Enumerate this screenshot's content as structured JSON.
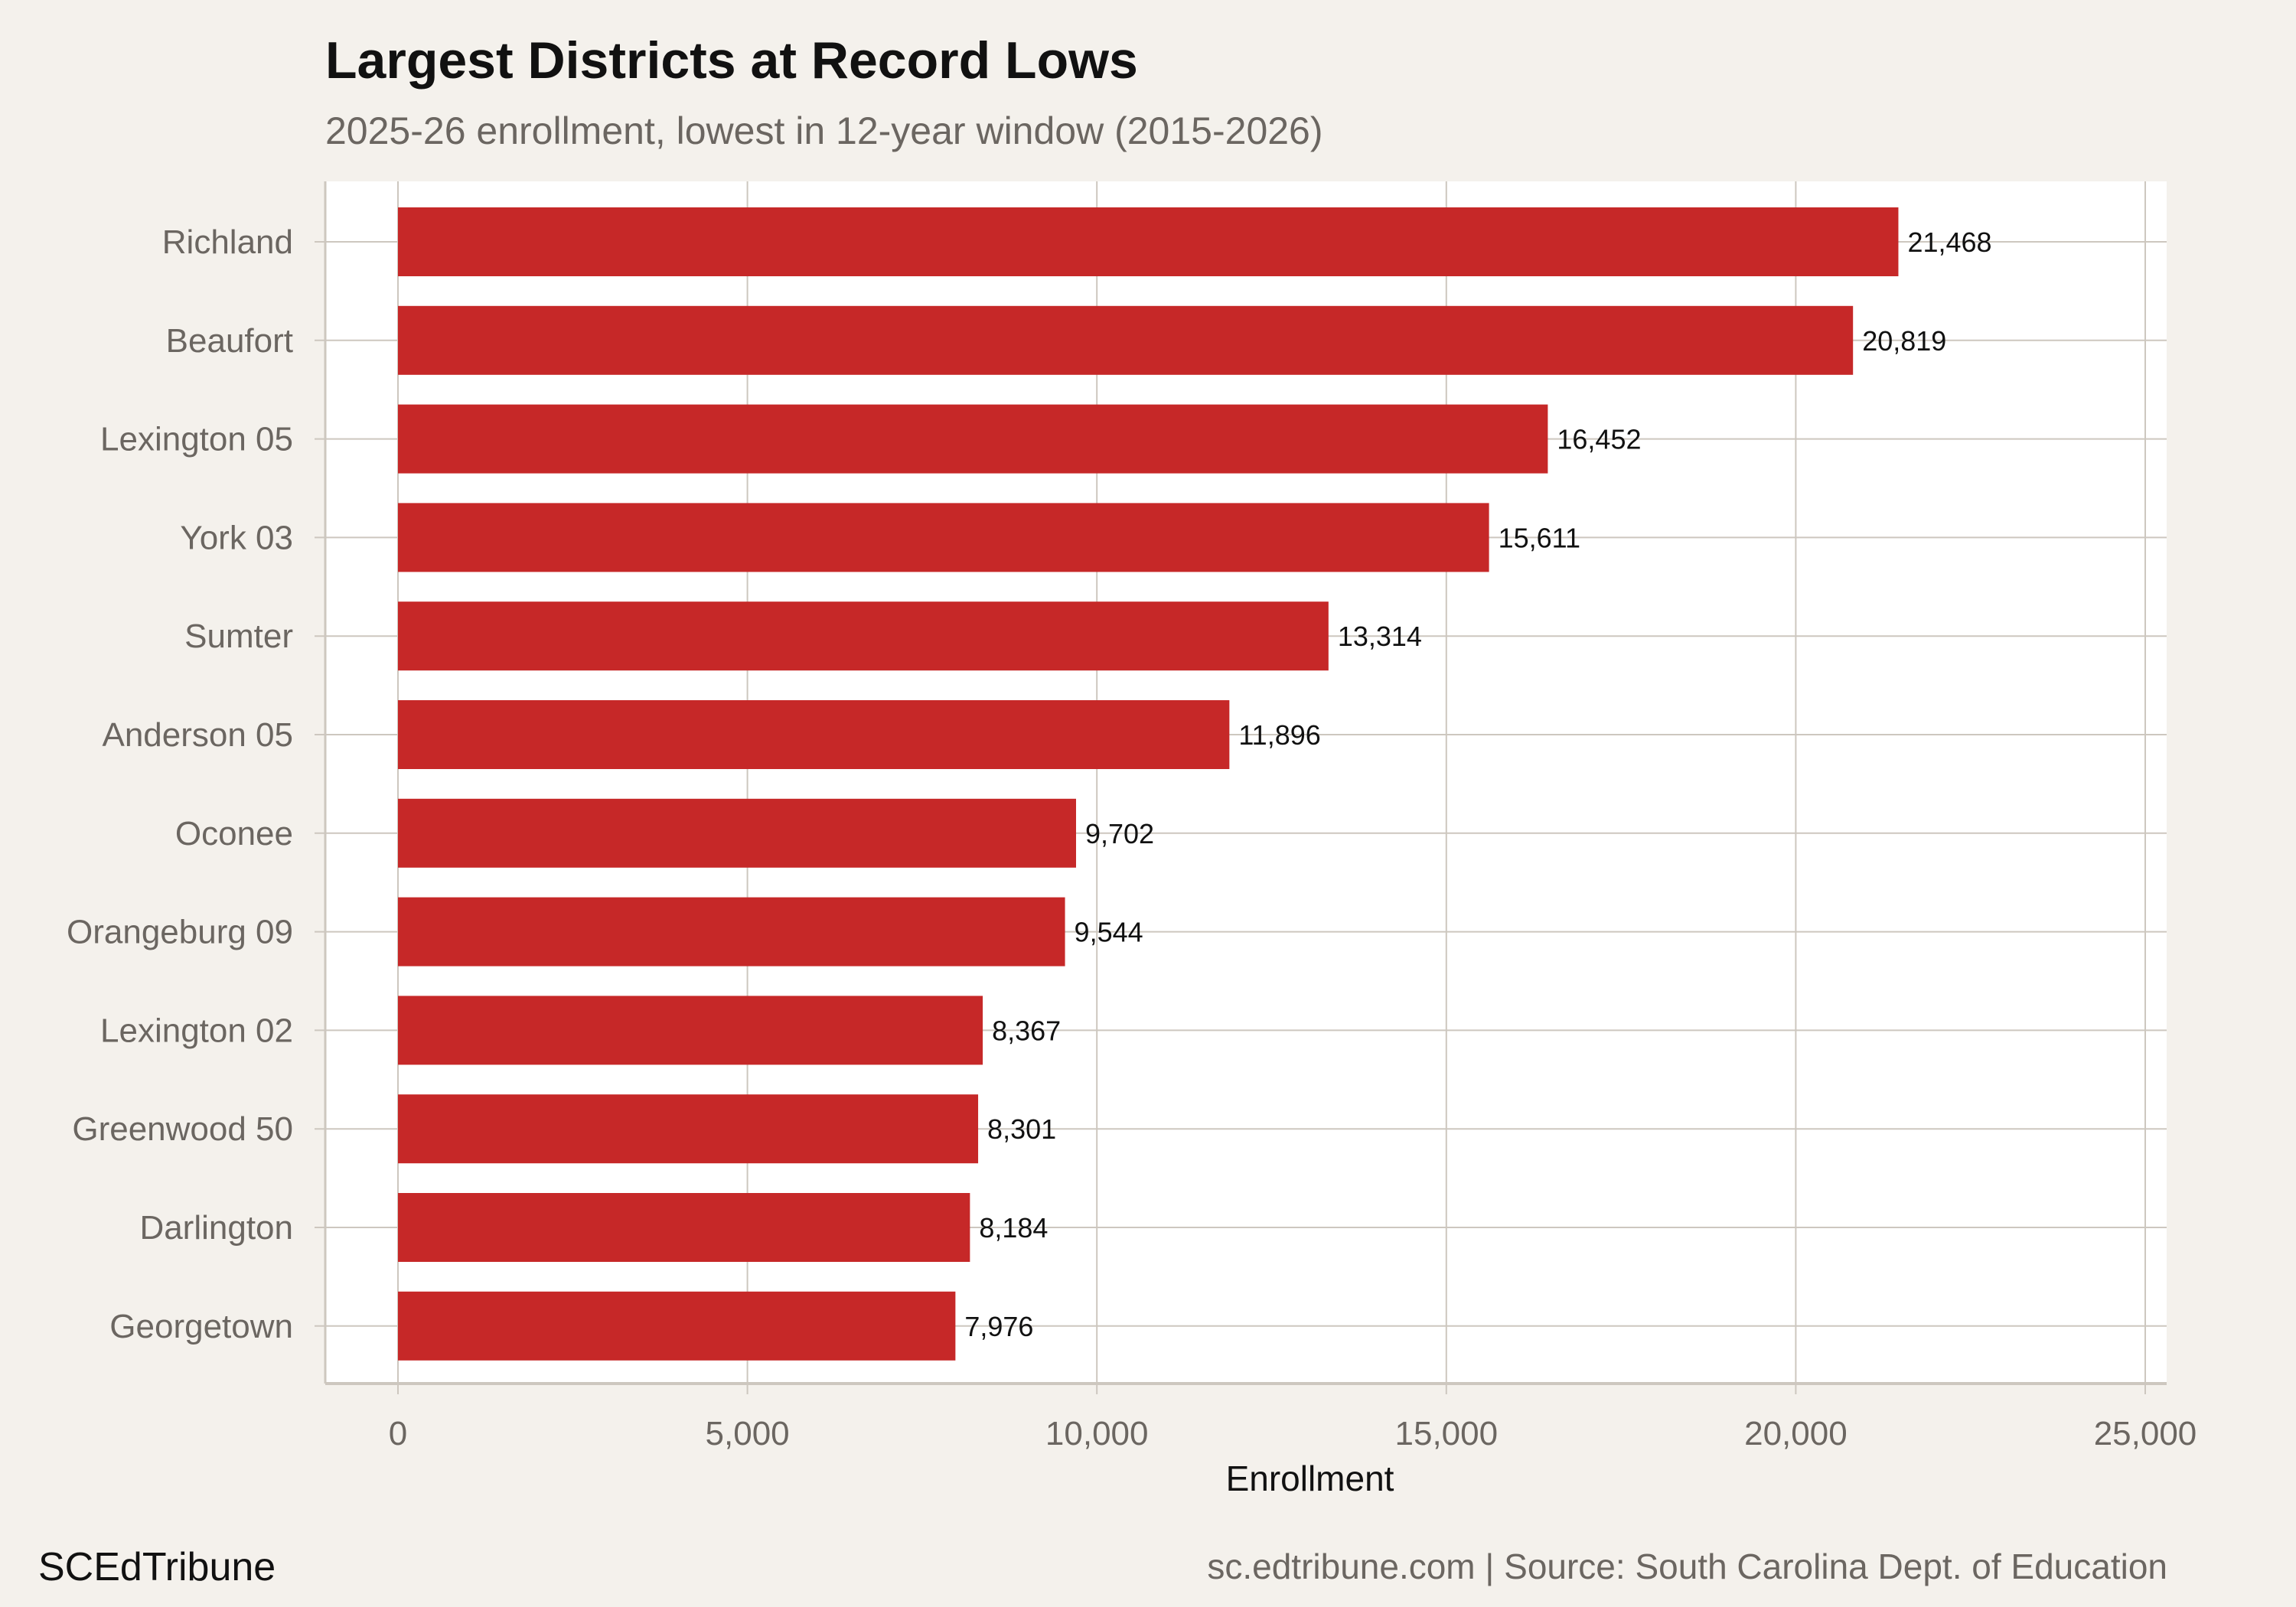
{
  "chart_data": {
    "type": "bar",
    "orientation": "horizontal",
    "title": "Largest Districts at Record Lows",
    "subtitle": "2025-26 enrollment, lowest in 12-year window (2015-2026)",
    "xlabel": "Enrollment",
    "ylabel": "",
    "xlim": [
      0,
      25000
    ],
    "xticks": [
      0,
      5000,
      10000,
      15000,
      20000,
      25000
    ],
    "xtick_labels": [
      "0",
      "5,000",
      "10,000",
      "15,000",
      "20,000",
      "25,000"
    ],
    "grid": true,
    "bar_color": "#c62828",
    "categories": [
      "Richland",
      "Beaufort",
      "Lexington 05",
      "York 03",
      "Sumter",
      "Anderson 05",
      "Oconee",
      "Orangeburg 09",
      "Lexington 02",
      "Greenwood 50",
      "Darlington",
      "Georgetown"
    ],
    "values": [
      21468,
      20819,
      16452,
      15611,
      13314,
      11896,
      9702,
      9544,
      8367,
      8301,
      8184,
      7976
    ],
    "data_labels": [
      "21,468",
      "20,819",
      "16,452",
      "15,611",
      "13,314",
      "11,896",
      "9,702",
      "9,544",
      "8,367",
      "8,301",
      "8,184",
      "7,976"
    ]
  },
  "footer": {
    "brand": "SCEdTribune",
    "source": "sc.edtribune.com | Source: South Carolina Dept. of Education"
  }
}
